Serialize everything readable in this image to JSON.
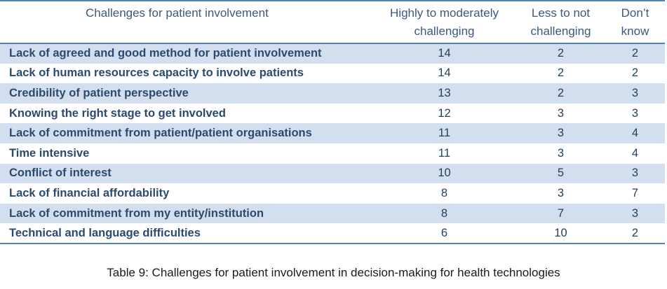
{
  "table": {
    "headers": [
      "Challenges for patient involvement",
      "Highly to moderately challenging",
      "Less to not challenging",
      "Don’t know"
    ],
    "header_lines": {
      "col1": [
        "Highly to moderately",
        "challenging"
      ],
      "col2": [
        "Less to not",
        "challenging"
      ],
      "col3": [
        "Don’t",
        "know"
      ]
    },
    "rows": [
      {
        "label": "Lack of agreed and good method for patient involvement",
        "high": "14",
        "low": "2",
        "unknown": "2"
      },
      {
        "label": "Lack of human resources capacity to involve patients",
        "high": "14",
        "low": "2",
        "unknown": "2"
      },
      {
        "label": "Credibility of patient perspective",
        "high": "13",
        "low": "2",
        "unknown": "3"
      },
      {
        "label": "Knowing the right stage to get involved",
        "high": "12",
        "low": "3",
        "unknown": "3"
      },
      {
        "label": "Lack of commitment from patient/patient organisations",
        "high": "11",
        "low": "3",
        "unknown": "4"
      },
      {
        "label": "Time intensive",
        "high": "11",
        "low": "3",
        "unknown": "4"
      },
      {
        "label": "Conflict of interest",
        "high": "10",
        "low": "5",
        "unknown": "3"
      },
      {
        "label": "Lack of financial affordability",
        "high": "8",
        "low": "3",
        "unknown": "7"
      },
      {
        "label": "Lack of commitment from my entity/institution",
        "high": "8",
        "low": "7",
        "unknown": "3"
      },
      {
        "label": "Technical and language difficulties",
        "high": "6",
        "low": "10",
        "unknown": "2"
      }
    ]
  },
  "caption": "Table 9: Challenges for patient involvement in decision-making for health technologies",
  "colors": {
    "rule": "#4f81bd",
    "shade": "#d3dfee",
    "text": "#24405f"
  }
}
